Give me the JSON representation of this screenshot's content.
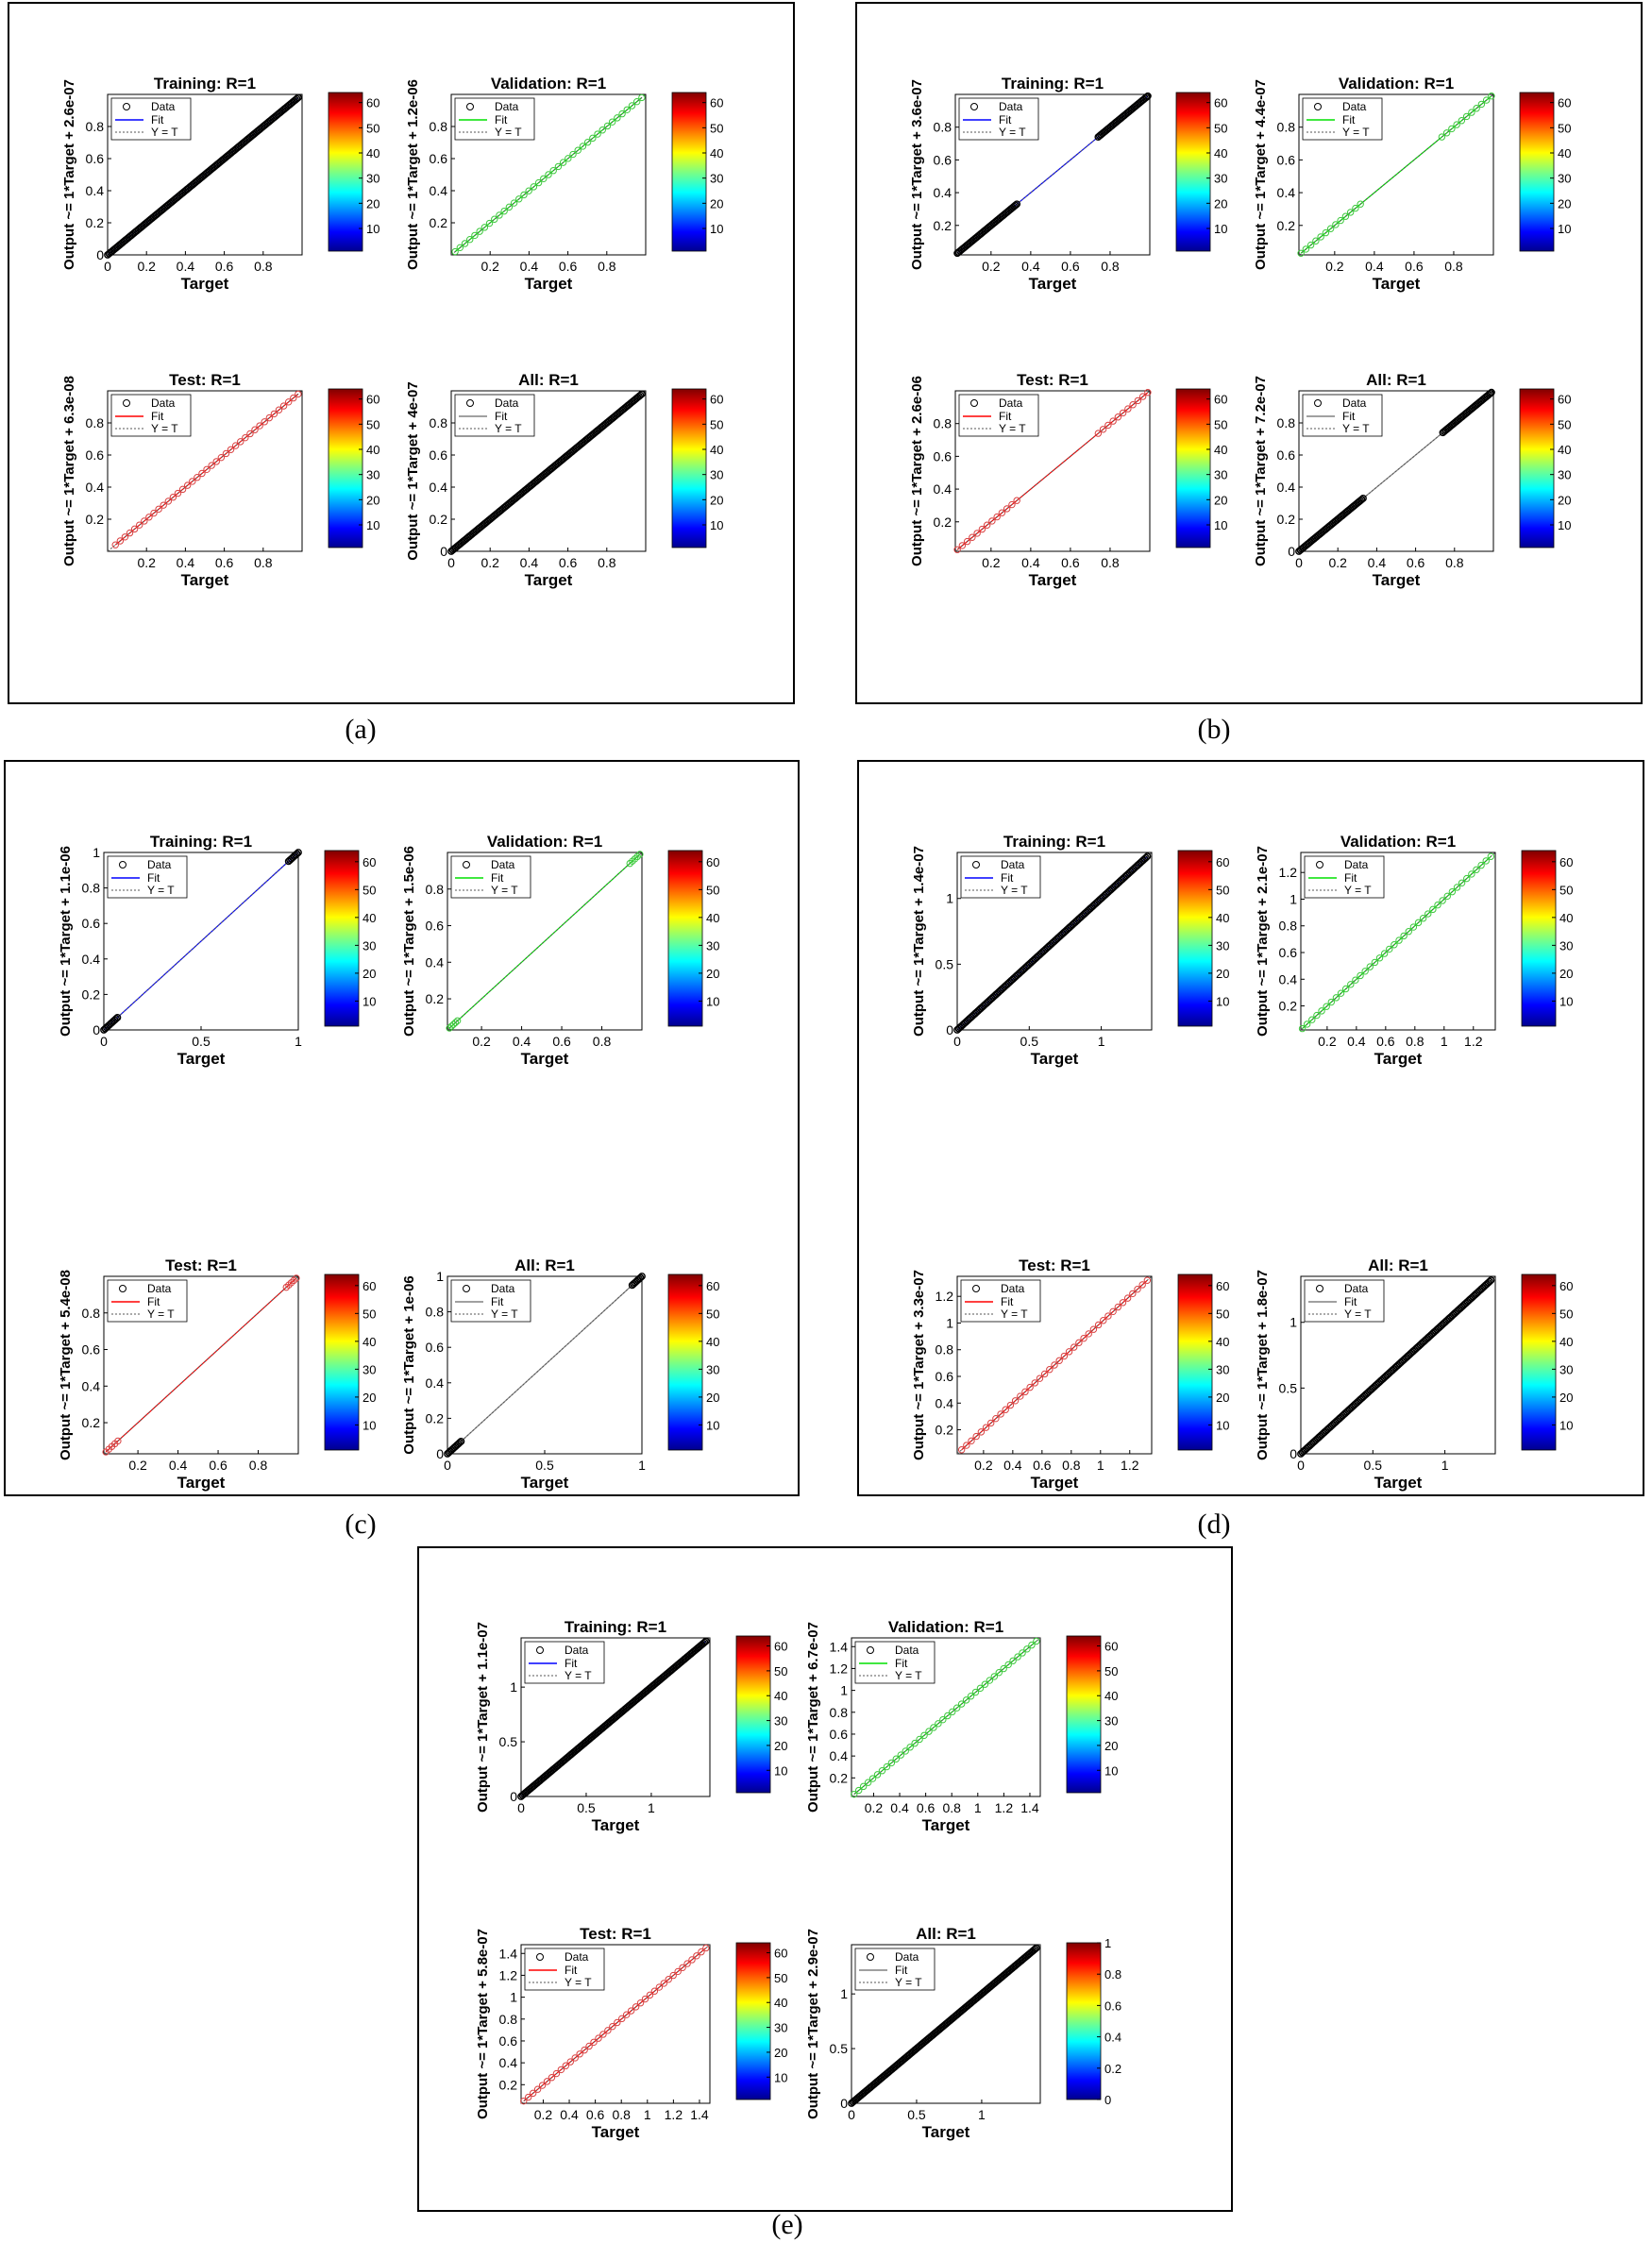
{
  "legend_labels": {
    "data": "Data",
    "fit": "Fit",
    "yt": "Y = T"
  },
  "xlabel": "Target",
  "colors": {
    "training": "#0000ff",
    "validation": "#00e000",
    "test": "#ff0000",
    "all": "#808080",
    "data_marker": "#000000",
    "validation_marker": "#3cc83c",
    "test_marker": "#d94040"
  },
  "figures": [
    {
      "caption": "(a)",
      "panels": [
        {
          "title": "Training: R=1",
          "ylabel": "Output ~= 1*Target + 2.6e-07",
          "fit": "training",
          "xticks": [
            "0",
            "0.2",
            "0.4",
            "0.6",
            "0.8"
          ],
          "yticks": [
            "0",
            "0.2",
            "0.4",
            "0.6",
            "0.8"
          ],
          "xlim": [
            0,
            1
          ],
          "ylim": [
            0,
            1
          ],
          "clusters": [
            [
              0,
              0.98
            ]
          ],
          "colorbar_ticks": [
            "10",
            "20",
            "30",
            "40",
            "50",
            "60"
          ]
        },
        {
          "title": "Validation: R=1",
          "ylabel": "Output ~= 1*Target + 1.2e-06",
          "fit": "validation",
          "xticks": [
            "0.2",
            "0.4",
            "0.6",
            "0.8"
          ],
          "yticks": [
            "0.2",
            "0.4",
            "0.6",
            "0.8"
          ],
          "xlim": [
            0,
            1
          ],
          "ylim": [
            0,
            1
          ],
          "clusters": [
            [
              0.02,
              0.98
            ]
          ],
          "colorbar_ticks": [
            "10",
            "20",
            "30",
            "40",
            "50",
            "60"
          ]
        },
        {
          "title": "Test: R=1",
          "ylabel": "Output ~= 1*Target + 6.3e-08",
          "fit": "test",
          "xticks": [
            "0.2",
            "0.4",
            "0.6",
            "0.8"
          ],
          "yticks": [
            "0.2",
            "0.4",
            "0.6",
            "0.8"
          ],
          "xlim": [
            0,
            1
          ],
          "ylim": [
            0,
            1
          ],
          "clusters": [
            [
              0.04,
              0.98
            ]
          ],
          "colorbar_ticks": [
            "10",
            "20",
            "30",
            "40",
            "50",
            "60"
          ]
        },
        {
          "title": "All: R=1",
          "ylabel": "Output ~= 1*Target + 4e-07",
          "fit": "all",
          "xticks": [
            "0",
            "0.2",
            "0.4",
            "0.6",
            "0.8"
          ],
          "yticks": [
            "0",
            "0.2",
            "0.4",
            "0.6",
            "0.8"
          ],
          "xlim": [
            0,
            1
          ],
          "ylim": [
            0,
            1
          ],
          "clusters": [
            [
              0,
              0.98
            ]
          ],
          "colorbar_ticks": [
            "10",
            "20",
            "30",
            "40",
            "50",
            "60"
          ]
        }
      ]
    },
    {
      "caption": "(b)",
      "panels": [
        {
          "title": "Training: R=1",
          "ylabel": "Output ~= 1*Target + 3.6e-07",
          "fit": "training",
          "xticks": [
            "0.2",
            "0.4",
            "0.6",
            "0.8"
          ],
          "yticks": [
            "0.2",
            "0.4",
            "0.6",
            "0.8"
          ],
          "xlim": [
            0.02,
            1
          ],
          "ylim": [
            0.02,
            1
          ],
          "clusters": [
            [
              0.03,
              0.33
            ],
            [
              0.74,
              0.99
            ]
          ],
          "colorbar_ticks": [
            "10",
            "20",
            "30",
            "40",
            "50",
            "60"
          ]
        },
        {
          "title": "Validation: R=1",
          "ylabel": "Output ~= 1*Target + 4.4e-07",
          "fit": "validation",
          "xticks": [
            "0.2",
            "0.4",
            "0.6",
            "0.8"
          ],
          "yticks": [
            "0.2",
            "0.4",
            "0.6",
            "0.8"
          ],
          "xlim": [
            0.02,
            1
          ],
          "ylim": [
            0.02,
            1
          ],
          "clusters": [
            [
              0.03,
              0.33
            ],
            [
              0.74,
              0.99
            ]
          ],
          "colorbar_ticks": [
            "10",
            "20",
            "30",
            "40",
            "50",
            "60"
          ]
        },
        {
          "title": "Test: R=1",
          "ylabel": "Output ~= 1*Target + 2.6e-06",
          "fit": "test",
          "xticks": [
            "0.2",
            "0.4",
            "0.6",
            "0.8"
          ],
          "yticks": [
            "0.2",
            "0.4",
            "0.6",
            "0.8"
          ],
          "xlim": [
            0.02,
            1
          ],
          "ylim": [
            0.02,
            1
          ],
          "clusters": [
            [
              0.03,
              0.33
            ],
            [
              0.74,
              0.99
            ]
          ],
          "colorbar_ticks": [
            "10",
            "20",
            "30",
            "40",
            "50",
            "60"
          ]
        },
        {
          "title": "All: R=1",
          "ylabel": "Output ~= 1*Target + 7.2e-07",
          "fit": "all",
          "xticks": [
            "0",
            "0.2",
            "0.4",
            "0.6",
            "0.8"
          ],
          "yticks": [
            "0",
            "0.2",
            "0.4",
            "0.6",
            "0.8"
          ],
          "xlim": [
            0,
            1
          ],
          "ylim": [
            0,
            1
          ],
          "clusters": [
            [
              0,
              0.33
            ],
            [
              0.74,
              0.99
            ]
          ],
          "colorbar_ticks": [
            "10",
            "20",
            "30",
            "40",
            "50",
            "60"
          ]
        }
      ]
    },
    {
      "caption": "(c)",
      "panels": [
        {
          "title": "Training: R=1",
          "ylabel": "Output ~= 1*Target + 1.1e-06",
          "fit": "training",
          "xticks": [
            "0",
            "0.5",
            "1"
          ],
          "yticks": [
            "0",
            "0.2",
            "0.4",
            "0.6",
            "0.8",
            "1"
          ],
          "xlim": [
            0,
            1
          ],
          "ylim": [
            0,
            1
          ],
          "clusters": [
            [
              0,
              0.07
            ],
            [
              0.95,
              1
            ]
          ],
          "colorbar_ticks": [
            "10",
            "20",
            "30",
            "40",
            "50",
            "60"
          ]
        },
        {
          "title": "Validation: R=1",
          "ylabel": "Output ~= 1*Target + 1.5e-06",
          "fit": "validation",
          "xticks": [
            "0.2",
            "0.4",
            "0.6",
            "0.8"
          ],
          "yticks": [
            "0.2",
            "0.4",
            "0.6",
            "0.8"
          ],
          "xlim": [
            0.03,
            1
          ],
          "ylim": [
            0.03,
            1
          ],
          "clusters": [
            [
              0.04,
              0.08
            ],
            [
              0.94,
              0.99
            ]
          ],
          "colorbar_ticks": [
            "10",
            "20",
            "30",
            "40",
            "50",
            "60"
          ]
        },
        {
          "title": "Test: R=1",
          "ylabel": "Output ~= 1*Target + 5.4e-08",
          "fit": "test",
          "xticks": [
            "0.2",
            "0.4",
            "0.6",
            "0.8"
          ],
          "yticks": [
            "0.2",
            "0.4",
            "0.6",
            "0.8"
          ],
          "xlim": [
            0.03,
            1
          ],
          "ylim": [
            0.03,
            1
          ],
          "clusters": [
            [
              0.04,
              0.1
            ],
            [
              0.94,
              0.99
            ]
          ],
          "colorbar_ticks": [
            "10",
            "20",
            "30",
            "40",
            "50",
            "60"
          ]
        },
        {
          "title": "All: R=1",
          "ylabel": "Output ~= 1*Target + 1e-06",
          "fit": "all",
          "xticks": [
            "0",
            "0.5",
            "1"
          ],
          "yticks": [
            "0",
            "0.2",
            "0.4",
            "0.6",
            "0.8",
            "1"
          ],
          "xlim": [
            0,
            1
          ],
          "ylim": [
            0,
            1
          ],
          "clusters": [
            [
              0,
              0.07
            ],
            [
              0.95,
              1
            ]
          ],
          "colorbar_ticks": [
            "10",
            "20",
            "30",
            "40",
            "50",
            "60"
          ]
        }
      ]
    },
    {
      "caption": "(d)",
      "panels": [
        {
          "title": "Training: R=1",
          "ylabel": "Output ~= 1*Target + 1.4e-07",
          "fit": "training",
          "xticks": [
            "0",
            "0.5",
            "1"
          ],
          "yticks": [
            "0",
            "0.5",
            "1"
          ],
          "xlim": [
            0,
            1.35
          ],
          "ylim": [
            0,
            1.35
          ],
          "clusters": [
            [
              0,
              1.32
            ]
          ],
          "colorbar_ticks": [
            "10",
            "20",
            "30",
            "40",
            "50",
            "60"
          ]
        },
        {
          "title": "Validation: R=1",
          "ylabel": "Output ~= 1*Target + 2.1e-07",
          "fit": "validation",
          "xticks": [
            "0.2",
            "0.4",
            "0.6",
            "0.8",
            "1",
            "1.2"
          ],
          "yticks": [
            "0.2",
            "0.4",
            "0.6",
            "0.8",
            "1",
            "1.2"
          ],
          "xlim": [
            0.02,
            1.35
          ],
          "ylim": [
            0.02,
            1.35
          ],
          "clusters": [
            [
              0.03,
              1.32
            ]
          ],
          "colorbar_ticks": [
            "10",
            "20",
            "30",
            "40",
            "50",
            "60"
          ]
        },
        {
          "title": "Test: R=1",
          "ylabel": "Output ~= 1*Target + 3.3e-07",
          "fit": "test",
          "xticks": [
            "0.2",
            "0.4",
            "0.6",
            "0.8",
            "1",
            "1.2"
          ],
          "yticks": [
            "0.2",
            "0.4",
            "0.6",
            "0.8",
            "1",
            "1.2"
          ],
          "xlim": [
            0.02,
            1.35
          ],
          "ylim": [
            0.02,
            1.35
          ],
          "clusters": [
            [
              0.05,
              1.32
            ]
          ],
          "colorbar_ticks": [
            "10",
            "20",
            "30",
            "40",
            "50",
            "60"
          ]
        },
        {
          "title": "All: R=1",
          "ylabel": "Output ~= 1*Target + 1.8e-07",
          "fit": "all",
          "xticks": [
            "0",
            "0.5",
            "1"
          ],
          "yticks": [
            "0",
            "0.5",
            "1"
          ],
          "xlim": [
            0,
            1.35
          ],
          "ylim": [
            0,
            1.35
          ],
          "clusters": [
            [
              0,
              1.32
            ]
          ],
          "colorbar_ticks": [
            "10",
            "20",
            "30",
            "40",
            "50",
            "60"
          ]
        }
      ]
    },
    {
      "caption": "(e)",
      "panels": [
        {
          "title": "Training: R=1",
          "ylabel": "Output ~= 1*Target + 1.1e-07",
          "fit": "training",
          "xticks": [
            "0",
            "0.5",
            "1"
          ],
          "yticks": [
            "0",
            "0.5",
            "1"
          ],
          "xlim": [
            0,
            1.45
          ],
          "ylim": [
            0,
            1.45
          ],
          "clusters": [
            [
              0,
              1.42
            ]
          ],
          "colorbar_ticks": [
            "10",
            "20",
            "30",
            "40",
            "50",
            "60"
          ]
        },
        {
          "title": "Validation: R=1",
          "ylabel": "Output ~= 1*Target + 6.7e-07",
          "fit": "validation",
          "xticks": [
            "0.2",
            "0.4",
            "0.6",
            "0.8",
            "1",
            "1.2",
            "1.4"
          ],
          "yticks": [
            "0.2",
            "0.4",
            "0.6",
            "0.8",
            "1",
            "1.2",
            "1.4"
          ],
          "xlim": [
            0.03,
            1.48
          ],
          "ylim": [
            0.03,
            1.48
          ],
          "clusters": [
            [
              0.05,
              1.45
            ]
          ],
          "colorbar_ticks": [
            "10",
            "20",
            "30",
            "40",
            "50",
            "60"
          ]
        },
        {
          "title": "Test: R=1",
          "ylabel": "Output ~= 1*Target + 5.8e-07",
          "fit": "test",
          "xticks": [
            "0.2",
            "0.4",
            "0.6",
            "0.8",
            "1",
            "1.2",
            "1.4"
          ],
          "yticks": [
            "0.2",
            "0.4",
            "0.6",
            "0.8",
            "1",
            "1.2",
            "1.4"
          ],
          "xlim": [
            0.03,
            1.48
          ],
          "ylim": [
            0.03,
            1.48
          ],
          "clusters": [
            [
              0.05,
              1.45
            ]
          ],
          "colorbar_ticks": [
            "10",
            "20",
            "30",
            "40",
            "50",
            "60"
          ]
        },
        {
          "title": "All: R=1",
          "ylabel": "Output ~= 1*Target + 2.9e-07",
          "fit": "all",
          "xticks": [
            "0",
            "0.5",
            "1"
          ],
          "yticks": [
            "0",
            "0.5",
            "1"
          ],
          "xlim": [
            0,
            1.45
          ],
          "ylim": [
            0,
            1.45
          ],
          "clusters": [
            [
              0,
              1.42
            ]
          ],
          "colorbar_ticks": [
            "0",
            "0.2",
            "0.4",
            "0.6",
            "0.8",
            "1"
          ]
        }
      ]
    }
  ],
  "chart_data": [
    {
      "type": "scatter",
      "title": "Training: R=1",
      "xlabel": "Target",
      "ylabel": "Output ~= 1*Target + 2.6e-07",
      "series": [
        {
          "name": "Data"
        },
        {
          "name": "Fit"
        },
        {
          "name": "Y = T"
        }
      ]
    },
    {
      "type": "scatter",
      "title": "Validation: R=1",
      "xlabel": "Target",
      "ylabel": "Output ~= 1*Target + 1.2e-06",
      "series": [
        {
          "name": "Data"
        },
        {
          "name": "Fit"
        },
        {
          "name": "Y = T"
        }
      ]
    },
    {
      "type": "scatter",
      "title": "Test: R=1",
      "xlabel": "Target",
      "ylabel": "Output ~= 1*Target + 6.3e-08",
      "series": [
        {
          "name": "Data"
        },
        {
          "name": "Fit"
        },
        {
          "name": "Y = T"
        }
      ]
    },
    {
      "type": "scatter",
      "title": "All: R=1",
      "xlabel": "Target",
      "ylabel": "Output ~= 1*Target + 4e-07",
      "series": [
        {
          "name": "Data"
        },
        {
          "name": "Fit"
        },
        {
          "name": "Y = T"
        }
      ]
    }
  ]
}
